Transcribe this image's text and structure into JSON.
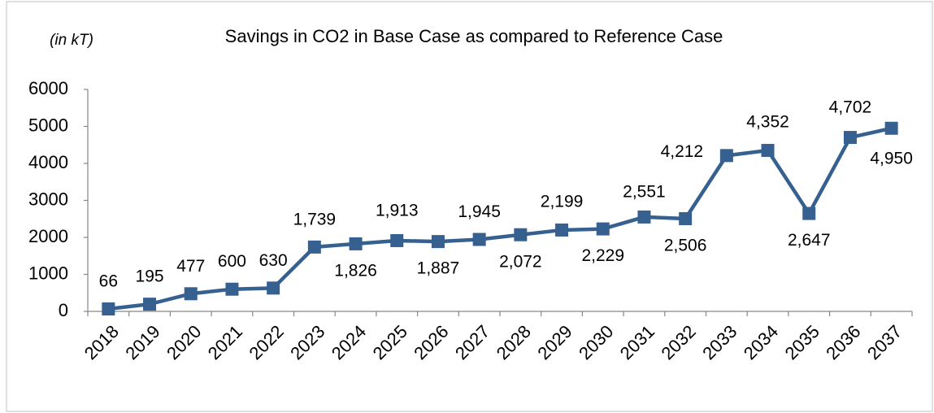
{
  "chart_data": {
    "type": "line",
    "title": "Savings in CO2 in Base Case as compared to Reference Case",
    "unit_label": "(in kT)",
    "categories": [
      "2018",
      "2019",
      "2020",
      "2021",
      "2022",
      "2023",
      "2024",
      "2025",
      "2026",
      "2027",
      "2028",
      "2029",
      "2030",
      "2031",
      "2032",
      "2033",
      "2034",
      "2035",
      "2036",
      "2037"
    ],
    "series": [
      {
        "name": "Savings in CO2",
        "color": "#35608f",
        "values": [
          66,
          195,
          477,
          600,
          630,
          1739,
          1826,
          1913,
          1887,
          1945,
          2072,
          2199,
          2229,
          2551,
          2506,
          4212,
          4352,
          2647,
          4702,
          4950
        ],
        "value_labels": [
          "66",
          "195",
          "477",
          "600",
          "630",
          "1,739",
          "1,826",
          "1,913",
          "1,887",
          "1,945",
          "2,072",
          "2,199",
          "2,229",
          "2,551",
          "2,506",
          "4,212",
          "4,352",
          "2,647",
          "4,702",
          "4,950"
        ]
      }
    ],
    "ylim": [
      0,
      6000
    ],
    "yticks": [
      0,
      1000,
      2000,
      3000,
      4000,
      5000,
      6000
    ],
    "grid": false
  }
}
